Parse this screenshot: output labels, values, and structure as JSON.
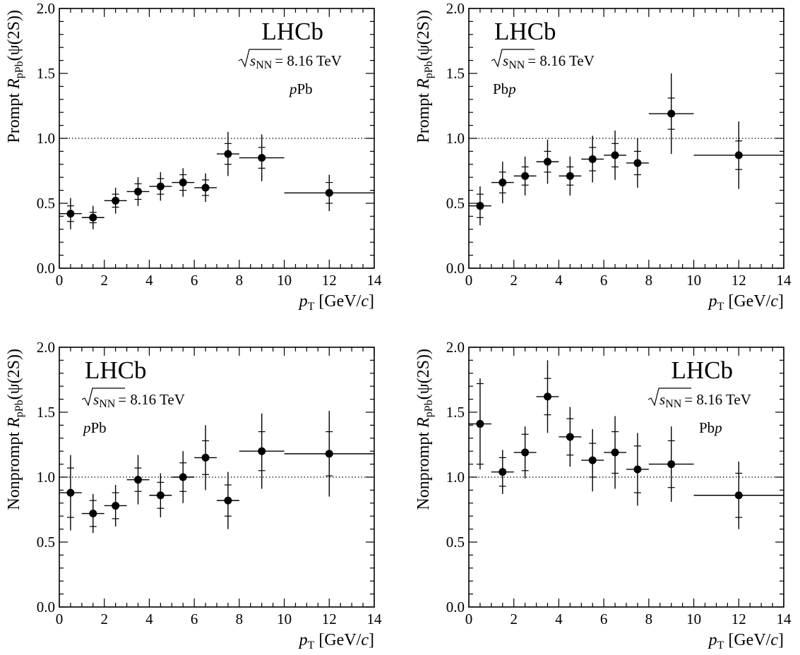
{
  "chart_data": [
    {
      "type": "scatter",
      "xlabel": {
        "var": "p",
        "sub": "T",
        "unit": " [GeV/",
        "unit_var": "c",
        "close": "]"
      },
      "ylabel": {
        "pre": "Prompt ",
        "var": "R",
        "sub": "pPb",
        "post": "(ψ(2S))"
      },
      "xlim": [
        0,
        14
      ],
      "ylim": [
        0,
        2
      ],
      "xticks": [
        "0",
        "2",
        "4",
        "6",
        "8",
        "10",
        "12",
        "14"
      ],
      "yticks": [
        "0.0",
        "0.5",
        "1.0",
        "1.5",
        "2.0"
      ],
      "reference_line": 1.0,
      "label": {
        "experiment": "LHCb",
        "energy_value": "= 8.16 TeV",
        "energy_var": "s",
        "energy_sub": "NN",
        "system": "pPb",
        "placement": "top-right"
      },
      "points": [
        {
          "x": 0.5,
          "xlo": 0,
          "xhi": 1,
          "y": 0.42,
          "stat": 0.06,
          "tot": 0.12
        },
        {
          "x": 1.5,
          "xlo": 1,
          "xhi": 2,
          "y": 0.39,
          "stat": 0.04,
          "tot": 0.09
        },
        {
          "x": 2.5,
          "xlo": 2,
          "xhi": 3,
          "y": 0.52,
          "stat": 0.05,
          "tot": 0.1
        },
        {
          "x": 3.5,
          "xlo": 3,
          "xhi": 4,
          "y": 0.59,
          "stat": 0.06,
          "tot": 0.11
        },
        {
          "x": 4.5,
          "xlo": 4,
          "xhi": 5,
          "y": 0.63,
          "stat": 0.06,
          "tot": 0.11
        },
        {
          "x": 5.5,
          "xlo": 5,
          "xhi": 6,
          "y": 0.66,
          "stat": 0.06,
          "tot": 0.11
        },
        {
          "x": 6.5,
          "xlo": 6,
          "xhi": 7,
          "y": 0.62,
          "stat": 0.06,
          "tot": 0.11
        },
        {
          "x": 7.5,
          "xlo": 7,
          "xhi": 8,
          "y": 0.88,
          "stat": 0.08,
          "tot": 0.17
        },
        {
          "x": 9.0,
          "xlo": 8,
          "xhi": 10,
          "y": 0.85,
          "stat": 0.08,
          "tot": 0.18
        },
        {
          "x": 12.0,
          "xlo": 10,
          "xhi": 14,
          "y": 0.58,
          "stat": 0.08,
          "tot": 0.14
        }
      ]
    },
    {
      "type": "scatter",
      "xlabel": {
        "var": "p",
        "sub": "T",
        "unit": " [GeV/",
        "unit_var": "c",
        "close": "]"
      },
      "ylabel": {
        "pre": "Prompt ",
        "var": "R",
        "sub": "pPb",
        "post": "(ψ(2S))"
      },
      "xlim": [
        0,
        14
      ],
      "ylim": [
        0,
        2
      ],
      "xticks": [
        "0",
        "2",
        "4",
        "6",
        "8",
        "10",
        "12",
        "14"
      ],
      "yticks": [
        "0.0",
        "0.5",
        "1.0",
        "1.5",
        "2.0"
      ],
      "reference_line": 1.0,
      "label": {
        "experiment": "LHCb",
        "energy_value": "= 8.16 TeV",
        "energy_var": "s",
        "energy_sub": "NN",
        "system": "Pbp",
        "placement": "top-left"
      },
      "points": [
        {
          "x": 0.5,
          "xlo": 0,
          "xhi": 1,
          "y": 0.48,
          "stat": 0.09,
          "tot": 0.15
        },
        {
          "x": 1.5,
          "xlo": 1,
          "xhi": 2,
          "y": 0.66,
          "stat": 0.08,
          "tot": 0.16
        },
        {
          "x": 2.5,
          "xlo": 2,
          "xhi": 3,
          "y": 0.71,
          "stat": 0.07,
          "tot": 0.15
        },
        {
          "x": 3.5,
          "xlo": 3,
          "xhi": 4,
          "y": 0.82,
          "stat": 0.08,
          "tot": 0.17
        },
        {
          "x": 4.5,
          "xlo": 4,
          "xhi": 5,
          "y": 0.71,
          "stat": 0.07,
          "tot": 0.15
        },
        {
          "x": 5.5,
          "xlo": 5,
          "xhi": 6,
          "y": 0.84,
          "stat": 0.09,
          "tot": 0.18
        },
        {
          "x": 6.5,
          "xlo": 6,
          "xhi": 7,
          "y": 0.87,
          "stat": 0.09,
          "tot": 0.19
        },
        {
          "x": 7.5,
          "xlo": 7,
          "xhi": 8,
          "y": 0.81,
          "stat": 0.09,
          "tot": 0.19
        },
        {
          "x": 9.0,
          "xlo": 8,
          "xhi": 10,
          "y": 1.19,
          "stat": 0.12,
          "tot": 0.31
        },
        {
          "x": 12.0,
          "xlo": 10,
          "xhi": 14,
          "y": 0.87,
          "stat": 0.11,
          "tot": 0.26
        }
      ]
    },
    {
      "type": "scatter",
      "xlabel": {
        "var": "p",
        "sub": "T",
        "unit": " [GeV/",
        "unit_var": "c",
        "close": "]"
      },
      "ylabel": {
        "pre": "Nonprompt ",
        "var": "R",
        "sub": "pPb",
        "post": "(ψ(2S))"
      },
      "xlim": [
        0,
        14
      ],
      "ylim": [
        0,
        2
      ],
      "xticks": [
        "0",
        "2",
        "4",
        "6",
        "8",
        "10",
        "12",
        "14"
      ],
      "yticks": [
        "0.0",
        "0.5",
        "1.0",
        "1.5",
        "2.0"
      ],
      "reference_line": 1.0,
      "label": {
        "experiment": "LHCb",
        "energy_value": "= 8.16 TeV",
        "energy_var": "s",
        "energy_sub": "NN",
        "system": "pPb",
        "placement": "top-left"
      },
      "points": [
        {
          "x": 0.5,
          "xlo": 0,
          "xhi": 1,
          "y": 0.88,
          "stat": 0.19,
          "tot": 0.29
        },
        {
          "x": 1.5,
          "xlo": 1,
          "xhi": 2,
          "y": 0.72,
          "stat": 0.1,
          "tot": 0.15
        },
        {
          "x": 2.5,
          "xlo": 2,
          "xhi": 3,
          "y": 0.78,
          "stat": 0.1,
          "tot": 0.16
        },
        {
          "x": 3.5,
          "xlo": 3,
          "xhi": 4,
          "y": 0.98,
          "stat": 0.09,
          "tot": 0.19
        },
        {
          "x": 4.5,
          "xlo": 4,
          "xhi": 5,
          "y": 0.86,
          "stat": 0.1,
          "tot": 0.17
        },
        {
          "x": 5.5,
          "xlo": 5,
          "xhi": 6,
          "y": 1.0,
          "stat": 0.11,
          "tot": 0.2
        },
        {
          "x": 6.5,
          "xlo": 6,
          "xhi": 7,
          "y": 1.15,
          "stat": 0.13,
          "tot": 0.25
        },
        {
          "x": 7.5,
          "xlo": 7,
          "xhi": 8,
          "y": 0.82,
          "stat": 0.12,
          "tot": 0.22
        },
        {
          "x": 9.0,
          "xlo": 8,
          "xhi": 10,
          "y": 1.2,
          "stat": 0.15,
          "tot": 0.29
        },
        {
          "x": 12.0,
          "xlo": 10,
          "xhi": 14,
          "y": 1.18,
          "stat": 0.17,
          "tot": 0.33
        }
      ]
    },
    {
      "type": "scatter",
      "xlabel": {
        "var": "p",
        "sub": "T",
        "unit": " [GeV/",
        "unit_var": "c",
        "close": "]"
      },
      "ylabel": {
        "pre": "Nonprompt ",
        "var": "R",
        "sub": "pPb",
        "post": "(ψ(2S))"
      },
      "xlim": [
        0,
        14
      ],
      "ylim": [
        0,
        2
      ],
      "xticks": [
        "0",
        "2",
        "4",
        "6",
        "8",
        "10",
        "12",
        "14"
      ],
      "yticks": [
        "0.0",
        "0.5",
        "1.0",
        "1.5",
        "2.0"
      ],
      "reference_line": 1.0,
      "label": {
        "experiment": "LHCb",
        "energy_value": "= 8.16 TeV",
        "energy_var": "s",
        "energy_sub": "NN",
        "system": "Pbp",
        "placement": "top-right"
      },
      "points": [
        {
          "x": 0.5,
          "xlo": 0,
          "xhi": 1,
          "y": 1.41,
          "stat": 0.31,
          "tot": 0.35
        },
        {
          "x": 1.5,
          "xlo": 1,
          "xhi": 2,
          "y": 1.04,
          "stat": 0.11,
          "tot": 0.17
        },
        {
          "x": 2.5,
          "xlo": 2,
          "xhi": 3,
          "y": 1.19,
          "stat": 0.14,
          "tot": 0.2
        },
        {
          "x": 3.5,
          "xlo": 3,
          "xhi": 4,
          "y": 1.62,
          "stat": 0.14,
          "tot": 0.28
        },
        {
          "x": 4.5,
          "xlo": 4,
          "xhi": 5,
          "y": 1.31,
          "stat": 0.14,
          "tot": 0.23
        },
        {
          "x": 5.5,
          "xlo": 5,
          "xhi": 6,
          "y": 1.13,
          "stat": 0.13,
          "tot": 0.24
        },
        {
          "x": 6.5,
          "xlo": 6,
          "xhi": 7,
          "y": 1.19,
          "stat": 0.16,
          "tot": 0.28
        },
        {
          "x": 7.5,
          "xlo": 7,
          "xhi": 8,
          "y": 1.06,
          "stat": 0.18,
          "tot": 0.28
        },
        {
          "x": 9.0,
          "xlo": 8,
          "xhi": 10,
          "y": 1.1,
          "stat": 0.18,
          "tot": 0.29
        },
        {
          "x": 12.0,
          "xlo": 10,
          "xhi": 14,
          "y": 0.86,
          "stat": 0.17,
          "tot": 0.26
        }
      ]
    }
  ]
}
